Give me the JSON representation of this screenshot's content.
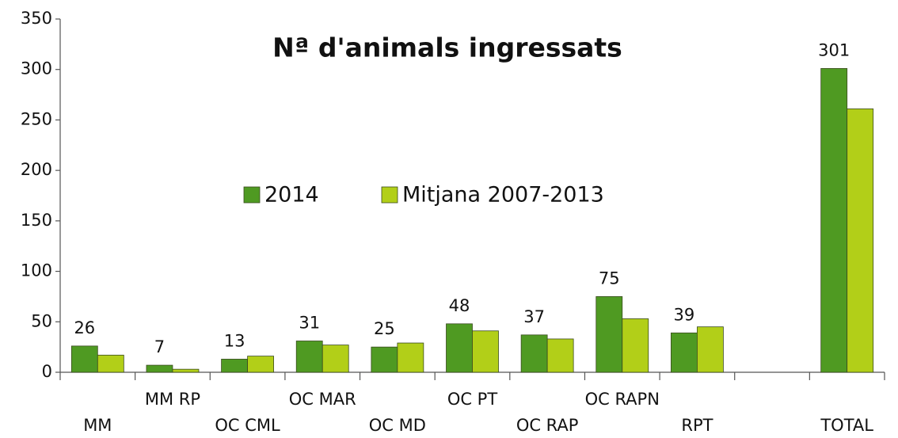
{
  "chart_data": {
    "type": "bar",
    "title": "Nª d'animals ingressats",
    "categories": [
      "MM",
      "MM RP",
      "OC CML",
      "OC MAR",
      "OC MD",
      "OC PT",
      "OC RAP",
      "OC RAPN",
      "RPT",
      null,
      "TOTAL"
    ],
    "series": [
      {
        "name": "2014",
        "color": "#4f9a22",
        "show_values": true,
        "values": [
          26,
          7,
          13,
          31,
          25,
          48,
          37,
          75,
          39,
          null,
          301
        ]
      },
      {
        "name": "Mitjana 2007-2013",
        "color": "#b2cf18",
        "show_values": false,
        "values": [
          17,
          3,
          16,
          27,
          29,
          41,
          33,
          53,
          45,
          null,
          261
        ]
      }
    ],
    "ylim": [
      0,
      350
    ],
    "yticks": [
      0,
      50,
      100,
      150,
      200,
      250,
      300,
      350
    ],
    "grid": false,
    "legend": "center"
  }
}
